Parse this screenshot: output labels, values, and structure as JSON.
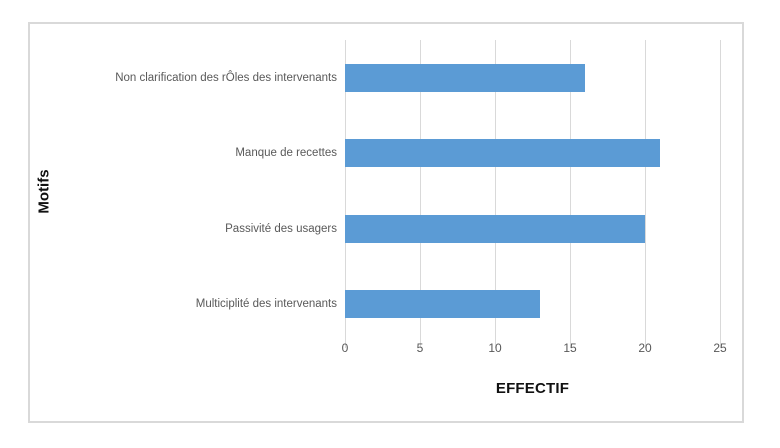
{
  "chart_data": {
    "type": "bar",
    "orientation": "horizontal",
    "title": "",
    "xlabel": "EFFECTIF",
    "ylabel": "Motifs",
    "categories": [
      "Non clarification des rÔles des intervenants",
      "Manque de recettes",
      "Passivité des usagers",
      "Multiciplité des intervenants"
    ],
    "values": [
      16,
      21,
      20,
      13
    ],
    "xlim": [
      0,
      25
    ],
    "xticks": [
      0,
      5,
      10,
      15,
      20,
      25
    ],
    "grid": true,
    "legend": false,
    "bar_color": "#5B9BD5",
    "gridline_color": "#D9D9D9",
    "frame_border_color": "#D9D9D9",
    "tick_label_color": "#595959",
    "category_label_color": "#595959",
    "axis_title_color": "#111111",
    "background_color": "#FFFFFF"
  }
}
